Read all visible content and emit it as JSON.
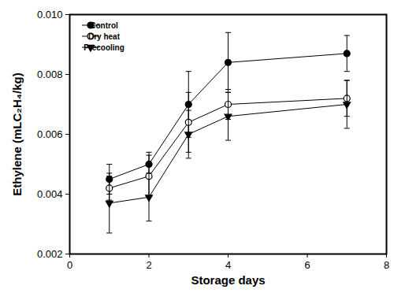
{
  "chart_data": {
    "type": "line",
    "x_label": "Storage days",
    "y_label": "Ethylene (mLC₂H₄/kg)",
    "x": [
      1,
      2,
      3,
      4,
      7
    ],
    "xlim": [
      0,
      8
    ],
    "xticks": [
      0,
      2,
      4,
      6,
      8
    ],
    "ylim": [
      0.002,
      0.01
    ],
    "yticks": [
      0.002,
      0.004,
      0.006,
      0.008,
      {
        "value": 0.01,
        "label": "0.010"
      }
    ],
    "grid": false,
    "legend": "upper left",
    "series": [
      {
        "name": "Control",
        "color": "#000000",
        "marker": "circle",
        "values": [
          0.0045,
          0.005,
          0.007,
          0.0084,
          0.0087
        ],
        "errors": [
          0.0005,
          0.0004,
          0.0011,
          0.001,
          0.0006
        ]
      },
      {
        "name": "Dry heat",
        "color": "#000000",
        "marker": "circle-open",
        "values": [
          0.0042,
          0.0046,
          0.0064,
          0.007,
          0.0072
        ],
        "errors": [
          0.0004,
          0.0007,
          0.001,
          0.0005,
          0.0006
        ]
      },
      {
        "name": "Precooling",
        "color": "#000000",
        "marker": "triangle-down",
        "values": [
          0.0037,
          0.0039,
          0.006,
          0.0066,
          0.007
        ],
        "errors": [
          0.001,
          0.0008,
          0.0008,
          0.0008,
          0.0008
        ]
      }
    ]
  }
}
